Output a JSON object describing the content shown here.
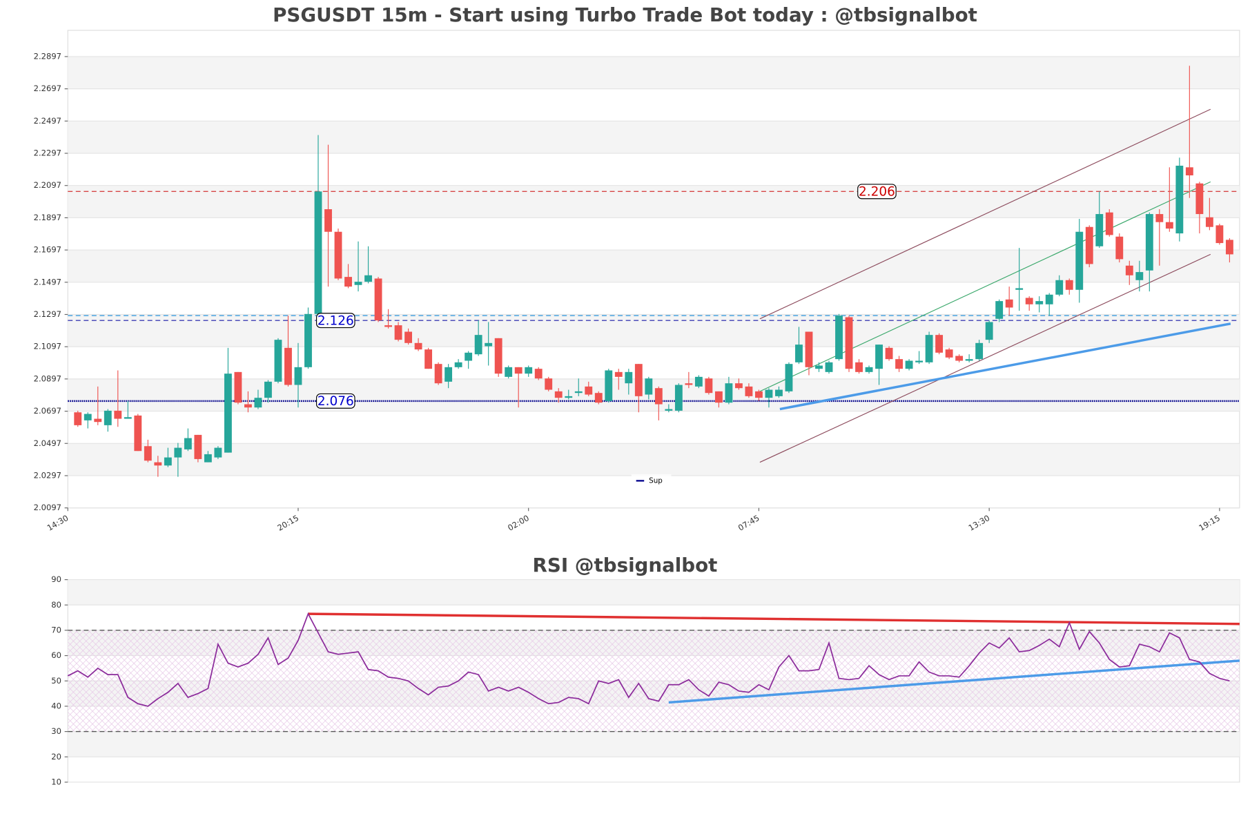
{
  "chart_data": [
    {
      "type": "candlestick",
      "title": "PSGUSDT 15m - Start using Turbo Trade Bot today : @tbsignalbot",
      "categories": [
        "14:30",
        null,
        null,
        null,
        null,
        null,
        null,
        null,
        null,
        null,
        null,
        null,
        null,
        null,
        null,
        null,
        null,
        null,
        null,
        null,
        null,
        null,
        null,
        "20:15",
        null,
        null,
        null,
        null,
        null,
        null,
        null,
        null,
        null,
        null,
        null,
        null,
        null,
        null,
        null,
        null,
        null,
        null,
        null,
        null,
        null,
        null,
        "02:00",
        null,
        null,
        null,
        null,
        null,
        null,
        null,
        null,
        null,
        null,
        null,
        null,
        null,
        null,
        null,
        null,
        null,
        null,
        null,
        null,
        null,
        null,
        "07:45",
        null,
        null,
        null,
        null,
        null,
        null,
        null,
        null,
        null,
        null,
        null,
        null,
        null,
        null,
        null,
        null,
        null,
        null,
        null,
        null,
        null,
        null,
        "13:30",
        null,
        null,
        null,
        null,
        null,
        null,
        null,
        null,
        null,
        null,
        null,
        null,
        null,
        null,
        null,
        null,
        null,
        null,
        null,
        null,
        null,
        null,
        "19:15",
        null
      ],
      "open": [
        null,
        2.069,
        2.064,
        2.065,
        2.061,
        2.07,
        2.065,
        2.067,
        2.048,
        2.038,
        2.036,
        2.041,
        2.046,
        2.055,
        2.038,
        2.041,
        2.044,
        2.094,
        2.074,
        2.072,
        2.078,
        2.088,
        2.109,
        2.086,
        2.097,
        2.13,
        2.195,
        2.181,
        2.153,
        2.148,
        2.15,
        2.152,
        2.123,
        2.123,
        2.119,
        2.112,
        2.108,
        2.099,
        2.088,
        2.097,
        2.101,
        2.105,
        2.11,
        2.115,
        2.091,
        2.097,
        2.093,
        2.096,
        2.09,
        2.082,
        2.078,
        2.081,
        2.085,
        2.081,
        2.076,
        2.094,
        2.087,
        2.099,
        2.08,
        2.084,
        2.07,
        2.07,
        2.087,
        2.085,
        2.09,
        2.082,
        2.075,
        2.087,
        2.085,
        2.082,
        2.078,
        2.079,
        2.082,
        2.1,
        2.119,
        2.096,
        2.094,
        2.102,
        2.128,
        2.1,
        2.094,
        2.096,
        2.109,
        2.102,
        2.096,
        2.1,
        2.1,
        2.117,
        2.108,
        2.104,
        2.101,
        2.102,
        2.114,
        2.127,
        2.139,
        2.145,
        2.14,
        2.136,
        2.136,
        2.142,
        2.151,
        2.145,
        2.184,
        2.172,
        2.193,
        2.178,
        2.16,
        2.151,
        2.157,
        2.192,
        2.187,
        2.18,
        2.221,
        2.211,
        2.19,
        2.185,
        2.176
      ],
      "high": [
        null,
        2.07,
        2.069,
        2.085,
        2.071,
        2.095,
        2.076,
        2.068,
        2.052,
        2.042,
        2.047,
        2.05,
        2.059,
        2.055,
        2.045,
        2.048,
        2.109,
        2.094,
        2.082,
        2.083,
        2.089,
        2.115,
        2.129,
        2.112,
        2.134,
        2.241,
        2.235,
        2.183,
        2.161,
        2.175,
        2.172,
        2.153,
        2.133,
        2.125,
        2.121,
        2.115,
        2.109,
        2.1,
        2.099,
        2.102,
        2.107,
        2.126,
        2.125,
        2.115,
        2.098,
        2.097,
        2.098,
        2.097,
        2.091,
        2.084,
        2.083,
        2.09,
        2.088,
        2.082,
        2.096,
        2.096,
        2.096,
        2.099,
        2.091,
        2.085,
        2.074,
        2.087,
        2.094,
        2.092,
        2.091,
        2.082,
        2.091,
        2.09,
        2.087,
        2.083,
        2.084,
        2.085,
        2.1,
        2.122,
        2.119,
        2.1,
        2.101,
        2.13,
        2.129,
        2.102,
        2.098,
        2.111,
        2.11,
        2.104,
        2.102,
        2.107,
        2.119,
        2.118,
        2.109,
        2.105,
        2.105,
        2.114,
        2.126,
        2.139,
        2.147,
        2.171,
        2.141,
        2.141,
        2.143,
        2.154,
        2.152,
        2.189,
        2.185,
        2.206,
        2.195,
        2.18,
        2.163,
        2.163,
        2.193,
        2.195,
        2.221,
        2.227,
        2.284,
        2.212,
        2.202,
        2.186,
        2.177
      ],
      "low": [
        null,
        2.06,
        2.059,
        2.061,
        2.057,
        2.06,
        2.065,
        2.045,
        2.038,
        2.029,
        2.035,
        2.029,
        2.045,
        2.038,
        2.038,
        2.04,
        2.044,
        2.074,
        2.069,
        2.071,
        2.075,
        2.087,
        2.085,
        2.072,
        2.096,
        2.129,
        2.147,
        2.151,
        2.146,
        2.144,
        2.149,
        2.125,
        2.121,
        2.113,
        2.111,
        2.107,
        2.096,
        2.086,
        2.084,
        2.096,
        2.096,
        2.104,
        2.098,
        2.091,
        2.09,
        2.072,
        2.091,
        2.089,
        2.082,
        2.075,
        2.077,
        2.079,
        2.079,
        2.074,
        2.075,
        2.083,
        2.08,
        2.069,
        2.077,
        2.064,
        2.069,
        2.069,
        2.084,
        2.084,
        2.08,
        2.072,
        2.074,
        2.083,
        2.078,
        2.076,
        2.072,
        2.078,
        2.081,
        2.099,
        2.092,
        2.094,
        2.093,
        2.101,
        2.094,
        2.093,
        2.093,
        2.086,
        2.101,
        2.094,
        2.095,
        2.099,
        2.099,
        2.105,
        2.102,
        2.1,
        2.1,
        2.101,
        2.112,
        2.125,
        2.129,
        2.132,
        2.132,
        2.131,
        2.129,
        2.141,
        2.142,
        2.137,
        2.159,
        2.171,
        2.178,
        2.162,
        2.148,
        2.144,
        2.144,
        2.16,
        2.181,
        2.175,
        2.202,
        2.18,
        2.182,
        2.173,
        2.162
      ],
      "close": [
        null,
        2.061,
        2.068,
        2.063,
        2.07,
        2.065,
        2.066,
        2.045,
        2.039,
        2.036,
        2.041,
        2.047,
        2.053,
        2.04,
        2.043,
        2.047,
        2.093,
        2.075,
        2.072,
        2.078,
        2.088,
        2.114,
        2.086,
        2.097,
        2.13,
        2.206,
        2.181,
        2.152,
        2.147,
        2.15,
        2.154,
        2.126,
        2.122,
        2.114,
        2.112,
        2.108,
        2.096,
        2.087,
        2.097,
        2.1,
        2.106,
        2.117,
        2.112,
        2.093,
        2.097,
        2.093,
        2.097,
        2.09,
        2.083,
        2.078,
        2.079,
        2.082,
        2.08,
        2.075,
        2.095,
        2.091,
        2.094,
        2.079,
        2.09,
        2.074,
        2.071,
        2.086,
        2.086,
        2.091,
        2.081,
        2.075,
        2.087,
        2.084,
        2.079,
        2.078,
        2.083,
        2.083,
        2.099,
        2.111,
        2.097,
        2.098,
        2.1,
        2.129,
        2.096,
        2.094,
        2.097,
        2.111,
        2.102,
        2.096,
        2.101,
        2.101,
        2.117,
        2.106,
        2.103,
        2.101,
        2.102,
        2.112,
        2.125,
        2.138,
        2.134,
        2.146,
        2.136,
        2.138,
        2.142,
        2.151,
        2.145,
        2.181,
        2.161,
        2.192,
        2.179,
        2.164,
        2.154,
        2.156,
        2.192,
        2.187,
        2.183,
        2.222,
        2.216,
        2.192,
        2.184,
        2.174,
        2.167
      ],
      "up_color": "#26a69a",
      "down_color": "#ef5350",
      "xlim": [
        0,
        117
      ],
      "ylim": [
        2.0097,
        2.306
      ],
      "yticks": [
        2.0097,
        2.0297,
        2.0497,
        2.0697,
        2.0897,
        2.1097,
        2.1297,
        2.1497,
        2.1697,
        2.1897,
        2.2097,
        2.2297,
        2.2497,
        2.2697,
        2.2897
      ],
      "bands": true,
      "hlines": [
        {
          "value": 2.206,
          "color": "#d64545",
          "style": "dashed",
          "show_label": true
        },
        {
          "value": 2.129,
          "color": "#4aa3df",
          "style": "dashed",
          "show_label": false
        },
        {
          "value": 2.126,
          "color": "#3b3bb3",
          "style": "dashed",
          "show_label": true
        },
        {
          "name": "Sup",
          "value": 2.076,
          "color": "#00008b",
          "style": "dotted",
          "show_label": true
        }
      ],
      "trendlines": [
        {
          "x": [
            69.1,
            114.1
          ],
          "y": [
            2.127,
            2.257
          ],
          "color": "#8c4a5c",
          "width": 1
        },
        {
          "x": [
            69.1,
            114.1
          ],
          "y": [
            2.038,
            2.167
          ],
          "color": "#8c4a5c",
          "width": 1
        },
        {
          "x": [
            69.1,
            114.1
          ],
          "y": [
            2.082,
            2.212
          ],
          "color": "#3aa86b",
          "width": 1
        },
        {
          "x": [
            71.1,
            116.1
          ],
          "y": [
            2.071,
            2.124
          ],
          "color": "#4c9be8",
          "width": 3
        }
      ],
      "legend": "lower center"
    },
    {
      "type": "line",
      "title": "RSI @tbsignalbot",
      "values": [
        52,
        54,
        51.5,
        55,
        52.5,
        52.5,
        43.5,
        41,
        40,
        43,
        45.5,
        49,
        43.5,
        45,
        47,
        64.5,
        57,
        55.5,
        57,
        60.5,
        67,
        56.5,
        59,
        66,
        76.5,
        69,
        61.5,
        60.5,
        61,
        61.5,
        54.5,
        54,
        51.5,
        51,
        50,
        47,
        44.5,
        47.5,
        48,
        50,
        53.5,
        52.5,
        46,
        47.5,
        46,
        47.5,
        45.5,
        43,
        41,
        41.5,
        43.5,
        43,
        41,
        50,
        49,
        50.5,
        43.5,
        49,
        43,
        42,
        48.5,
        48.5,
        50.5,
        46.5,
        44,
        49.5,
        48.5,
        46,
        45.5,
        48.5,
        46.5,
        55.5,
        60,
        54,
        54,
        54.5,
        65,
        51,
        50.5,
        51,
        56,
        52.5,
        50.5,
        52,
        52,
        57.5,
        53.5,
        52,
        52,
        51.5,
        56,
        61,
        65,
        63,
        67,
        61.5,
        62,
        64,
        66.5,
        63.5,
        73,
        62.5,
        69.5,
        65,
        58.5,
        55.5,
        56,
        64.5,
        63.5,
        61.5,
        69,
        67,
        58.5,
        57.5,
        53,
        51,
        50
      ],
      "color": "#8b2a9b",
      "xlim": [
        0,
        117
      ],
      "ylim": [
        10,
        90
      ],
      "yticks": [
        10,
        20,
        30,
        40,
        50,
        60,
        70,
        80,
        90
      ],
      "bands": true,
      "hlines": [
        {
          "value": 70,
          "color": "#555555",
          "style": "dashed"
        },
        {
          "value": 30,
          "color": "#555555",
          "style": "dashed"
        }
      ],
      "zone": [
        30,
        70
      ],
      "trendlines": [
        {
          "x": [
            24,
            117
          ],
          "y": [
            76.5,
            72.5
          ],
          "color": "#e03030",
          "width": 3
        },
        {
          "x": [
            60,
            117
          ],
          "y": [
            41.5,
            58
          ],
          "color": "#4c9be8",
          "width": 3
        }
      ]
    }
  ]
}
